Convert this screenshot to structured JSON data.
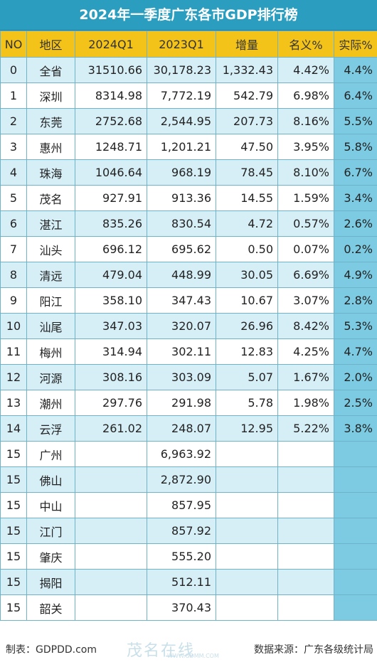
{
  "title": "2024年一季度广东各市GDP排行榜",
  "headers": [
    "NO",
    "地区",
    "2024Q1",
    "2023Q1",
    "增量",
    "名义%",
    "实际%"
  ],
  "rows": [
    {
      "no": "0",
      "region": "全省",
      "q2024": "31510.66",
      "q2023": "30,178.23",
      "inc": "1,332.43",
      "nominal": "4.42%",
      "real": "4.4%"
    },
    {
      "no": "1",
      "region": "深圳",
      "q2024": "8314.98",
      "q2023": "7,772.19",
      "inc": "542.79",
      "nominal": "6.98%",
      "real": "6.4%"
    },
    {
      "no": "2",
      "region": "东莞",
      "q2024": "2752.68",
      "q2023": "2,544.95",
      "inc": "207.73",
      "nominal": "8.16%",
      "real": "5.5%"
    },
    {
      "no": "3",
      "region": "惠州",
      "q2024": "1248.71",
      "q2023": "1,201.21",
      "inc": "47.50",
      "nominal": "3.95%",
      "real": "5.8%"
    },
    {
      "no": "4",
      "region": "珠海",
      "q2024": "1046.64",
      "q2023": "968.19",
      "inc": "78.45",
      "nominal": "8.10%",
      "real": "6.7%"
    },
    {
      "no": "5",
      "region": "茂名",
      "q2024": "927.91",
      "q2023": "913.36",
      "inc": "14.55",
      "nominal": "1.59%",
      "real": "3.4%"
    },
    {
      "no": "6",
      "region": "湛江",
      "q2024": "835.26",
      "q2023": "830.54",
      "inc": "4.72",
      "nominal": "0.57%",
      "real": "2.6%"
    },
    {
      "no": "7",
      "region": "汕头",
      "q2024": "696.12",
      "q2023": "695.62",
      "inc": "0.50",
      "nominal": "0.07%",
      "real": "0.2%"
    },
    {
      "no": "8",
      "region": "清远",
      "q2024": "479.04",
      "q2023": "448.99",
      "inc": "30.05",
      "nominal": "6.69%",
      "real": "4.9%"
    },
    {
      "no": "9",
      "region": "阳江",
      "q2024": "358.10",
      "q2023": "347.43",
      "inc": "10.67",
      "nominal": "3.07%",
      "real": "2.8%"
    },
    {
      "no": "10",
      "region": "汕尾",
      "q2024": "347.03",
      "q2023": "320.07",
      "inc": "26.96",
      "nominal": "8.42%",
      "real": "5.3%"
    },
    {
      "no": "11",
      "region": "梅州",
      "q2024": "314.94",
      "q2023": "302.11",
      "inc": "12.83",
      "nominal": "4.25%",
      "real": "4.7%"
    },
    {
      "no": "12",
      "region": "河源",
      "q2024": "308.16",
      "q2023": "303.09",
      "inc": "5.07",
      "nominal": "1.67%",
      "real": "2.0%"
    },
    {
      "no": "13",
      "region": "潮州",
      "q2024": "297.76",
      "q2023": "291.98",
      "inc": "5.78",
      "nominal": "1.98%",
      "real": "2.5%"
    },
    {
      "no": "14",
      "region": "云浮",
      "q2024": "261.02",
      "q2023": "248.07",
      "inc": "12.95",
      "nominal": "5.22%",
      "real": "3.8%"
    },
    {
      "no": "15",
      "region": "广州",
      "q2024": "",
      "q2023": "6,963.92",
      "inc": "",
      "nominal": "",
      "real": ""
    },
    {
      "no": "15",
      "region": "佛山",
      "q2024": "",
      "q2023": "2,872.90",
      "inc": "",
      "nominal": "",
      "real": ""
    },
    {
      "no": "15",
      "region": "中山",
      "q2024": "",
      "q2023": "857.95",
      "inc": "",
      "nominal": "",
      "real": ""
    },
    {
      "no": "15",
      "region": "江门",
      "q2024": "",
      "q2023": "857.92",
      "inc": "",
      "nominal": "",
      "real": ""
    },
    {
      "no": "15",
      "region": "肇庆",
      "q2024": "",
      "q2023": "555.20",
      "inc": "",
      "nominal": "",
      "real": ""
    },
    {
      "no": "15",
      "region": "揭阳",
      "q2024": "",
      "q2023": "512.11",
      "inc": "",
      "nominal": "",
      "real": ""
    },
    {
      "no": "15",
      "region": "韶关",
      "q2024": "",
      "q2023": "370.43",
      "inc": "",
      "nominal": "",
      "real": ""
    }
  ],
  "footer": {
    "maker": "制表：GDPDD.com",
    "source": "数据来源：广东各级统计局",
    "watermark": "茂名在线",
    "watermark_url": "WWW.GDMM.COM"
  }
}
